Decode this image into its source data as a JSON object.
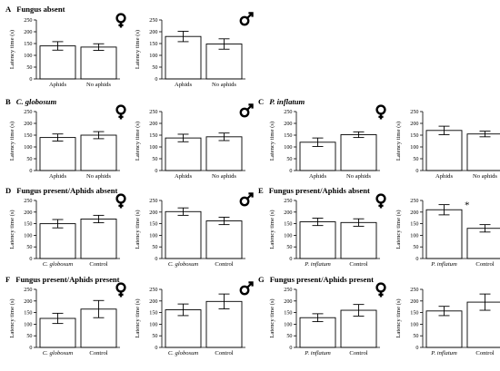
{
  "figure": {
    "sections": [
      {
        "letter": "A",
        "title": "Fungus absent",
        "italic": false
      },
      {
        "letter": "B",
        "title": "C. globosum",
        "italic": true
      },
      {
        "letter": "C",
        "title": "P. inflatum",
        "italic": true
      },
      {
        "letter": "D",
        "title": "Fungus present/Aphids absent",
        "italic": false
      },
      {
        "letter": "E",
        "title": "Fungus present/Aphids absent",
        "italic": false
      },
      {
        "letter": "F",
        "title": "Fungus present/Aphids present",
        "italic": false
      },
      {
        "letter": "G",
        "title": "Fungus present/Aphids present",
        "italic": false
      }
    ],
    "female_symbol": "female-symbol-icon",
    "male_symbol": "male-symbol-icon",
    "significance_marker": "*",
    "colors": {
      "bar_fill": "#ffffff",
      "stroke": "#000000"
    }
  },
  "chart_data": [
    {
      "type": "bar",
      "section": "A",
      "sex": "female",
      "categories": [
        "Aphids",
        "No aphids"
      ],
      "category_italic": false,
      "values": [
        140,
        135
      ],
      "errors": [
        18,
        14
      ],
      "ylabel": "Latency time (s)",
      "ylim": [
        0,
        250
      ],
      "yticks": [
        0,
        50,
        100,
        150,
        200,
        250
      ],
      "star": null
    },
    {
      "type": "bar",
      "section": "A",
      "sex": "male",
      "categories": [
        "Aphids",
        "No aphids"
      ],
      "category_italic": false,
      "values": [
        180,
        148
      ],
      "errors": [
        22,
        22
      ],
      "ylabel": "Latency time (s)",
      "ylim": [
        0,
        250
      ],
      "yticks": [
        0,
        50,
        100,
        150,
        200,
        250
      ],
      "star": null
    },
    {
      "type": "bar",
      "section": "B",
      "sex": "female",
      "categories": [
        "Aphids",
        "No aphids"
      ],
      "category_italic": false,
      "values": [
        140,
        150
      ],
      "errors": [
        15,
        15
      ],
      "ylabel": "Latency time (s)",
      "ylim": [
        0,
        250
      ],
      "yticks": [
        0,
        50,
        100,
        150,
        200,
        250
      ],
      "star": null
    },
    {
      "type": "bar",
      "section": "B",
      "sex": "male",
      "categories": [
        "Aphids",
        "No aphids"
      ],
      "category_italic": false,
      "values": [
        138,
        143
      ],
      "errors": [
        16,
        16
      ],
      "ylabel": "Latency time (s)",
      "ylim": [
        0,
        250
      ],
      "yticks": [
        0,
        50,
        100,
        150,
        200,
        250
      ],
      "star": null
    },
    {
      "type": "bar",
      "section": "C",
      "sex": "female",
      "categories": [
        "Aphids",
        "No aphids"
      ],
      "category_italic": false,
      "values": [
        120,
        152
      ],
      "errors": [
        18,
        12
      ],
      "ylabel": "Latency time (s)",
      "ylim": [
        0,
        250
      ],
      "yticks": [
        0,
        50,
        100,
        150,
        200,
        250
      ],
      "star": null
    },
    {
      "type": "bar",
      "section": "C",
      "sex": "male",
      "categories": [
        "Aphids",
        "No aphids"
      ],
      "category_italic": false,
      "values": [
        170,
        155
      ],
      "errors": [
        18,
        12
      ],
      "ylabel": "Latency time (s)",
      "ylim": [
        0,
        250
      ],
      "yticks": [
        0,
        50,
        100,
        150,
        200,
        250
      ],
      "star": null
    },
    {
      "type": "bar",
      "section": "D",
      "sex": "female",
      "categories": [
        "C. globosum",
        "Control"
      ],
      "category_italic": [
        true,
        false
      ],
      "values": [
        150,
        170
      ],
      "errors": [
        18,
        16
      ],
      "ylabel": "Latency time (s)",
      "ylim": [
        0,
        250
      ],
      "yticks": [
        0,
        50,
        100,
        150,
        200,
        250
      ],
      "star": null
    },
    {
      "type": "bar",
      "section": "D",
      "sex": "male",
      "categories": [
        "C. globosum",
        "Control"
      ],
      "category_italic": [
        true,
        false
      ],
      "values": [
        202,
        162
      ],
      "errors": [
        16,
        16
      ],
      "ylabel": "Latency time (s)",
      "ylim": [
        0,
        250
      ],
      "yticks": [
        0,
        50,
        100,
        150,
        200,
        250
      ],
      "star": null
    },
    {
      "type": "bar",
      "section": "E",
      "sex": "female",
      "categories": [
        "P. inflatum",
        "Control"
      ],
      "category_italic": [
        true,
        false
      ],
      "values": [
        158,
        155
      ],
      "errors": [
        16,
        16
      ],
      "ylabel": "Latency time (s)",
      "ylim": [
        0,
        250
      ],
      "yticks": [
        0,
        50,
        100,
        150,
        200,
        250
      ],
      "star": null
    },
    {
      "type": "bar",
      "section": "E",
      "sex": "male",
      "categories": [
        "P. inflatum",
        "Control"
      ],
      "category_italic": [
        true,
        false
      ],
      "values": [
        210,
        130
      ],
      "errors": [
        22,
        16
      ],
      "ylabel": "Latency time (s)",
      "ylim": [
        0,
        250
      ],
      "yticks": [
        0,
        50,
        100,
        150,
        200,
        250
      ],
      "star": 0
    },
    {
      "type": "bar",
      "section": "F",
      "sex": "female",
      "categories": [
        "C. globosum",
        "Control"
      ],
      "category_italic": [
        true,
        false
      ],
      "values": [
        125,
        165
      ],
      "errors": [
        22,
        37
      ],
      "ylabel": "Latency time (s)",
      "ylim": [
        0,
        250
      ],
      "yticks": [
        0,
        50,
        100,
        150,
        200,
        250
      ],
      "star": null
    },
    {
      "type": "bar",
      "section": "F",
      "sex": "male",
      "categories": [
        "C. globosum",
        "Control"
      ],
      "category_italic": [
        true,
        false
      ],
      "values": [
        162,
        198
      ],
      "errors": [
        25,
        32
      ],
      "ylabel": "Latency time (s)",
      "ylim": [
        0,
        250
      ],
      "yticks": [
        0,
        50,
        100,
        150,
        200,
        250
      ],
      "star": null
    },
    {
      "type": "bar",
      "section": "G",
      "sex": "female",
      "categories": [
        "P. inflatum",
        "Control"
      ],
      "category_italic": [
        true,
        false
      ],
      "values": [
        128,
        160
      ],
      "errors": [
        17,
        25
      ],
      "ylabel": "Latency time (s)",
      "ylim": [
        0,
        250
      ],
      "yticks": [
        0,
        50,
        100,
        150,
        200,
        250
      ],
      "star": null
    },
    {
      "type": "bar",
      "section": "G",
      "sex": "male",
      "categories": [
        "P. inflatum",
        "Control"
      ],
      "category_italic": [
        true,
        false
      ],
      "values": [
        157,
        195
      ],
      "errors": [
        20,
        35
      ],
      "ylabel": "Latency time (s)",
      "ylim": [
        0,
        250
      ],
      "yticks": [
        0,
        50,
        100,
        150,
        200,
        250
      ],
      "star": null
    }
  ]
}
